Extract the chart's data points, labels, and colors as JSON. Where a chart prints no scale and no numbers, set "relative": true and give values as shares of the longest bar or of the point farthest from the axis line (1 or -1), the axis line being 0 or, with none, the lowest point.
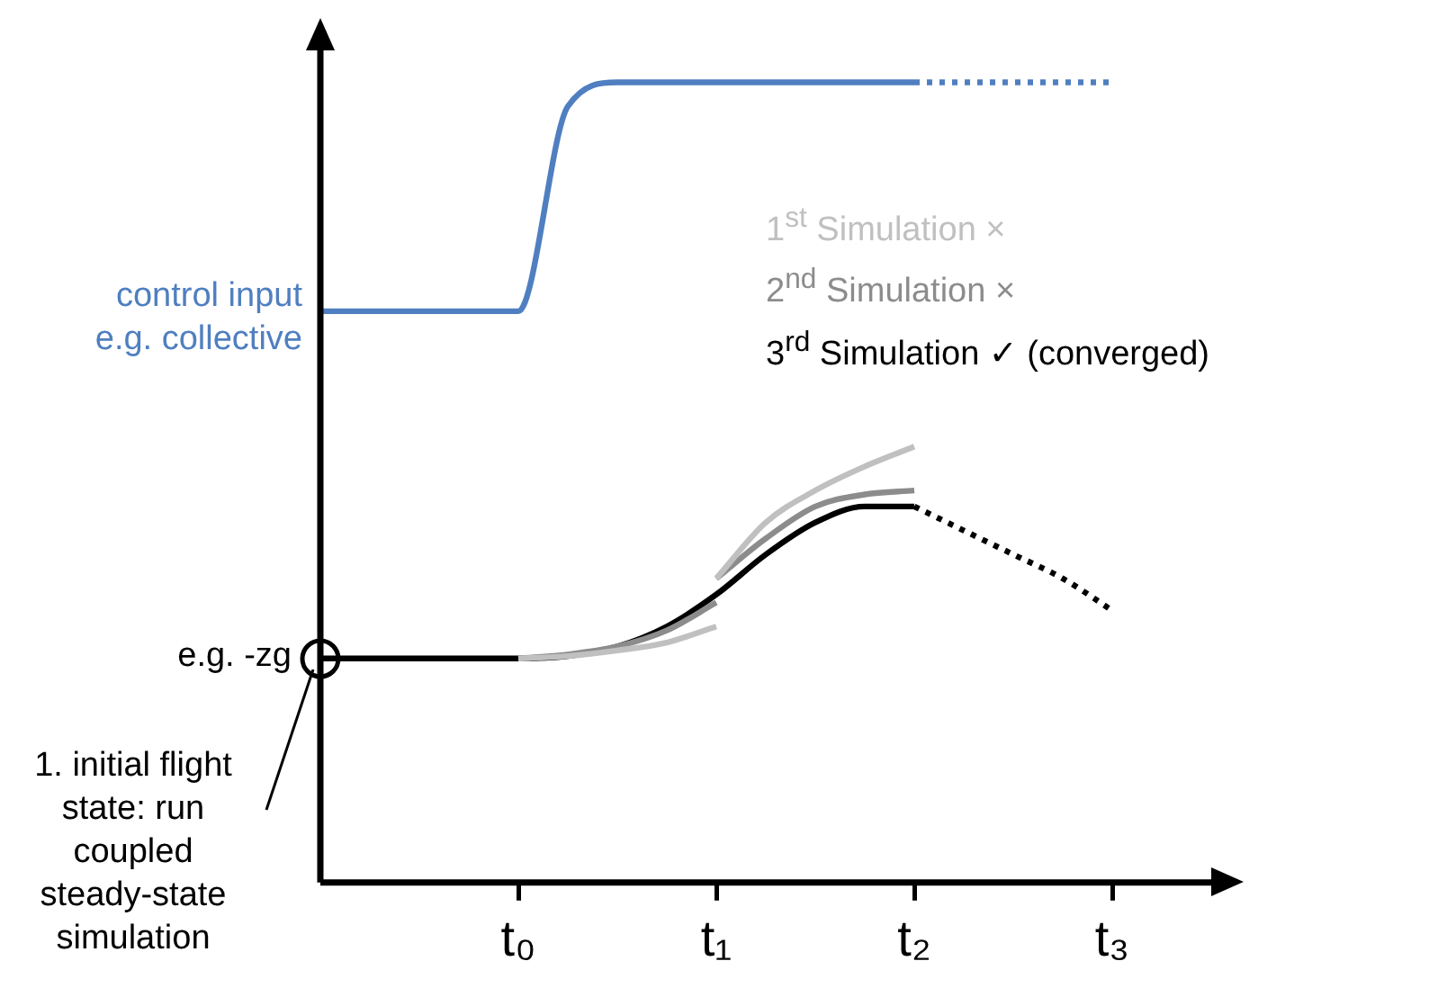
{
  "chart_data": {
    "type": "line",
    "relative": true,
    "categories": [
      null,
      null,
      null,
      null,
      "t₀",
      null,
      null,
      null,
      "t₁",
      null,
      null,
      null,
      "t₂",
      null,
      null,
      null,
      "t₃",
      null,
      null
    ],
    "line_style": "solid",
    "series": [
      {
        "name": "control input e.g. collective",
        "color": "#4f7fc0",
        "values": [
          0.714,
          0.714,
          0.714,
          0.714,
          0.714,
          0.97,
          1,
          1,
          1,
          1,
          1,
          1,
          1,
          null,
          null,
          null,
          null,
          null,
          null
        ]
      },
      {
        "color": "#4f7fc0",
        "line_style": "dotted",
        "values": [
          null,
          null,
          null,
          null,
          null,
          null,
          null,
          null,
          null,
          null,
          null,
          null,
          1,
          1,
          1,
          1,
          1,
          null,
          null
        ]
      },
      {
        "name": "1$^{st}$ Simulation ×",
        "color": "#c0c0c0",
        "values": [
          null,
          null,
          null,
          null,
          0.28,
          0.283,
          0.29,
          0.3,
          0.32,
          null,
          null,
          null,
          null,
          null,
          null,
          null,
          null,
          null,
          null
        ]
      },
      {
        "color": "#c0c0c0",
        "values": [
          null,
          null,
          null,
          null,
          null,
          null,
          null,
          null,
          0.38,
          0.45,
          0.49,
          0.52,
          0.545,
          null,
          null,
          null,
          null,
          null,
          null
        ]
      },
      {
        "name": "2$^{nd}$ Simulation ×",
        "color": "#8c8c8c",
        "values": [
          null,
          null,
          null,
          null,
          0.28,
          0.285,
          0.295,
          0.315,
          0.35,
          null,
          null,
          null,
          null,
          null,
          null,
          null,
          null,
          null,
          null
        ]
      },
      {
        "color": "#8c8c8c",
        "values": [
          null,
          null,
          null,
          null,
          null,
          null,
          null,
          null,
          0.38,
          0.43,
          0.47,
          0.485,
          0.49,
          null,
          null,
          null,
          null,
          null,
          null
        ]
      },
      {
        "name": "3$^{rd}$ Simulation ✓ (converged)",
        "color": "#000000",
        "values": [
          0.28,
          0.28,
          0.28,
          0.28,
          0.28,
          0.283,
          0.295,
          0.32,
          0.36,
          0.41,
          0.45,
          0.47,
          0.47,
          null,
          null,
          null,
          null,
          null,
          null
        ]
      },
      {
        "color": "#000000",
        "line_style": "dotted",
        "values": [
          null,
          null,
          null,
          null,
          null,
          null,
          null,
          null,
          null,
          null,
          null,
          null,
          0.47,
          0.44,
          0.41,
          0.38,
          0.34,
          null,
          null
        ]
      }
    ],
    "annotations": [
      "e.g. -zg",
      "1. initial flight state: run coupled steady-state simulation"
    ]
  }
}
